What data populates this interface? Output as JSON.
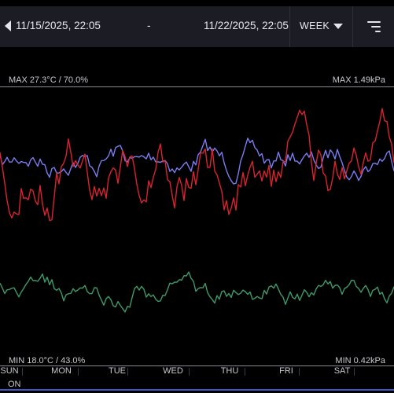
{
  "header": {
    "start_date": "11/15/2025, 22:05",
    "separator": "-",
    "end_date": "11/22/2025, 22:05",
    "period": "WEEK"
  },
  "chart": {
    "max_left": "MAX 27.3°C / 70.0%",
    "max_right": "MAX 1.49kPa",
    "min_left": "MIN 18.0°C / 43.0%",
    "min_right": "MIN 0.42kPa",
    "days": [
      "SUN",
      "MON",
      "TUE",
      "WED",
      "THU",
      "FRI",
      "SAT"
    ],
    "status": "ON"
  },
  "colors": {
    "temperature": "#d9232f",
    "humidity": "#7b7cf0",
    "vpd": "#3e9a6a",
    "background": "#000000",
    "header_bg": "#1c1d24"
  }
}
